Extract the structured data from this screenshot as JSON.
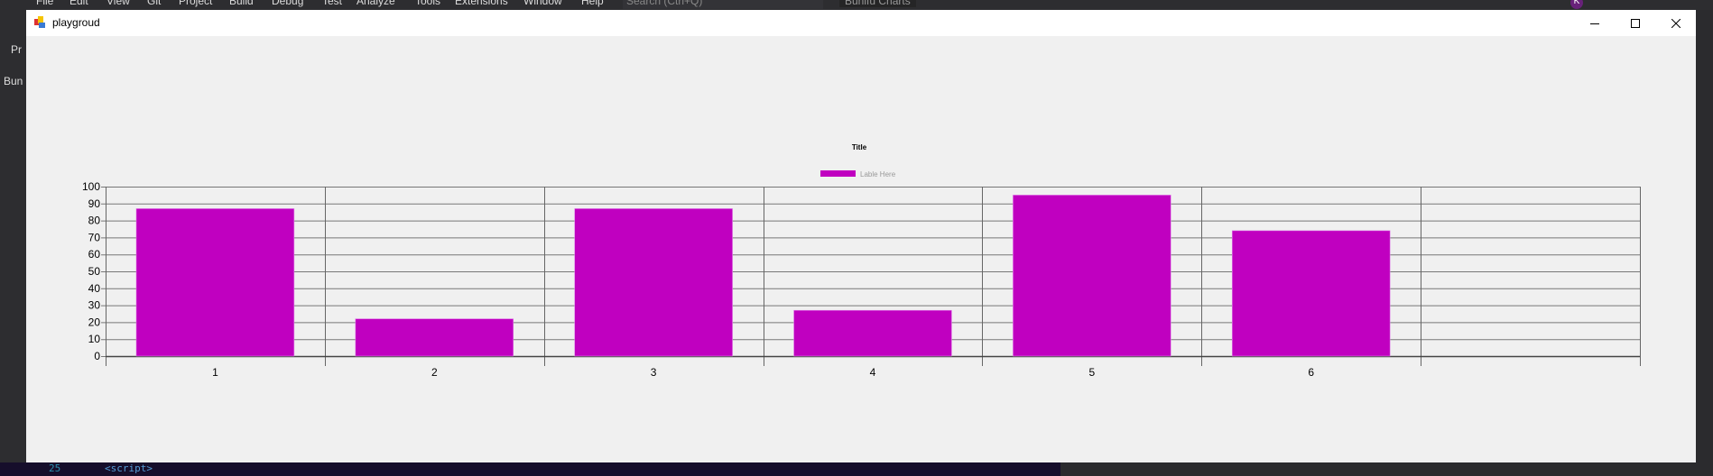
{
  "ide": {
    "menu": [
      "File",
      "Edit",
      "View",
      "Git",
      "Project",
      "Build",
      "Debug",
      "Test",
      "Analyze",
      "Tools",
      "Extensions",
      "Window",
      "Help"
    ],
    "search_placeholder": "Search (Ctrl+Q)",
    "solution_tab": "Bunifu Charts",
    "avatar_initial": "K",
    "left_labels": [
      "Pr",
      "Bun"
    ],
    "editor_line_number": "25",
    "editor_code": "<script>"
  },
  "window": {
    "title": "playgroud",
    "minimize_icon": "minimize-icon",
    "maximize_icon": "maximize-icon",
    "close_icon": "close-icon"
  },
  "chart_data": {
    "type": "bar",
    "title": "Title",
    "legend": {
      "label": "Lable Here",
      "position": "top-center"
    },
    "categories": [
      "1",
      "2",
      "3",
      "4",
      "5",
      "6"
    ],
    "series": [
      {
        "name": "Lable Here",
        "values": [
          87,
          22,
          87,
          27,
          95,
          74
        ],
        "color": "#c000c0"
      }
    ],
    "ylim": [
      0,
      100
    ],
    "yticks": [
      0,
      10,
      20,
      30,
      40,
      50,
      60,
      70,
      80,
      90,
      100
    ],
    "xlabel": "",
    "ylabel": "",
    "grid": true
  }
}
